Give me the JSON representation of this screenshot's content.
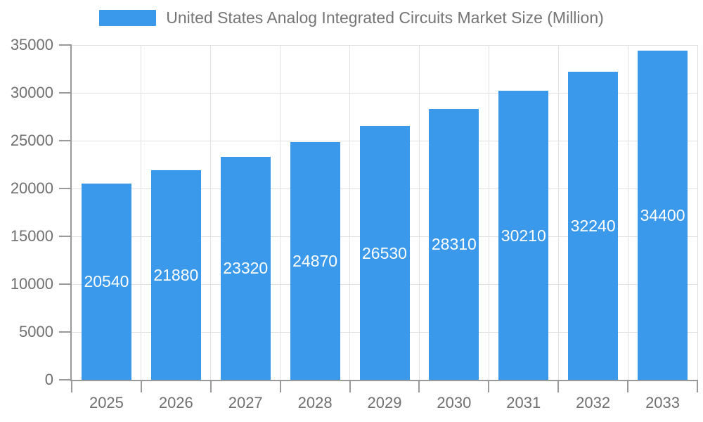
{
  "chart_data": {
    "type": "bar",
    "title": "",
    "legend": "United States Analog Integrated Circuits Market Size (Million)",
    "legend_position": "top-center",
    "categories": [
      "2025",
      "2026",
      "2027",
      "2028",
      "2029",
      "2030",
      "2031",
      "2032",
      "2033"
    ],
    "values": [
      20540,
      21880,
      23320,
      24870,
      26530,
      28310,
      30210,
      32240,
      34400
    ],
    "xlabel": "",
    "ylabel": "",
    "ylim": [
      0,
      35000
    ],
    "ytick_step": 5000,
    "yticks": [
      "0",
      "5000",
      "10000",
      "15000",
      "20000",
      "25000",
      "30000",
      "35000"
    ],
    "grid": true,
    "value_labels_inside_bars": true,
    "colors": {
      "bar": "#3B99EC",
      "bar_value_label": "#ffffff",
      "axis_text": "#707070",
      "legend_text": "#757575",
      "grid_line": "#e0e0e0",
      "axis_line": "#999999"
    }
  }
}
